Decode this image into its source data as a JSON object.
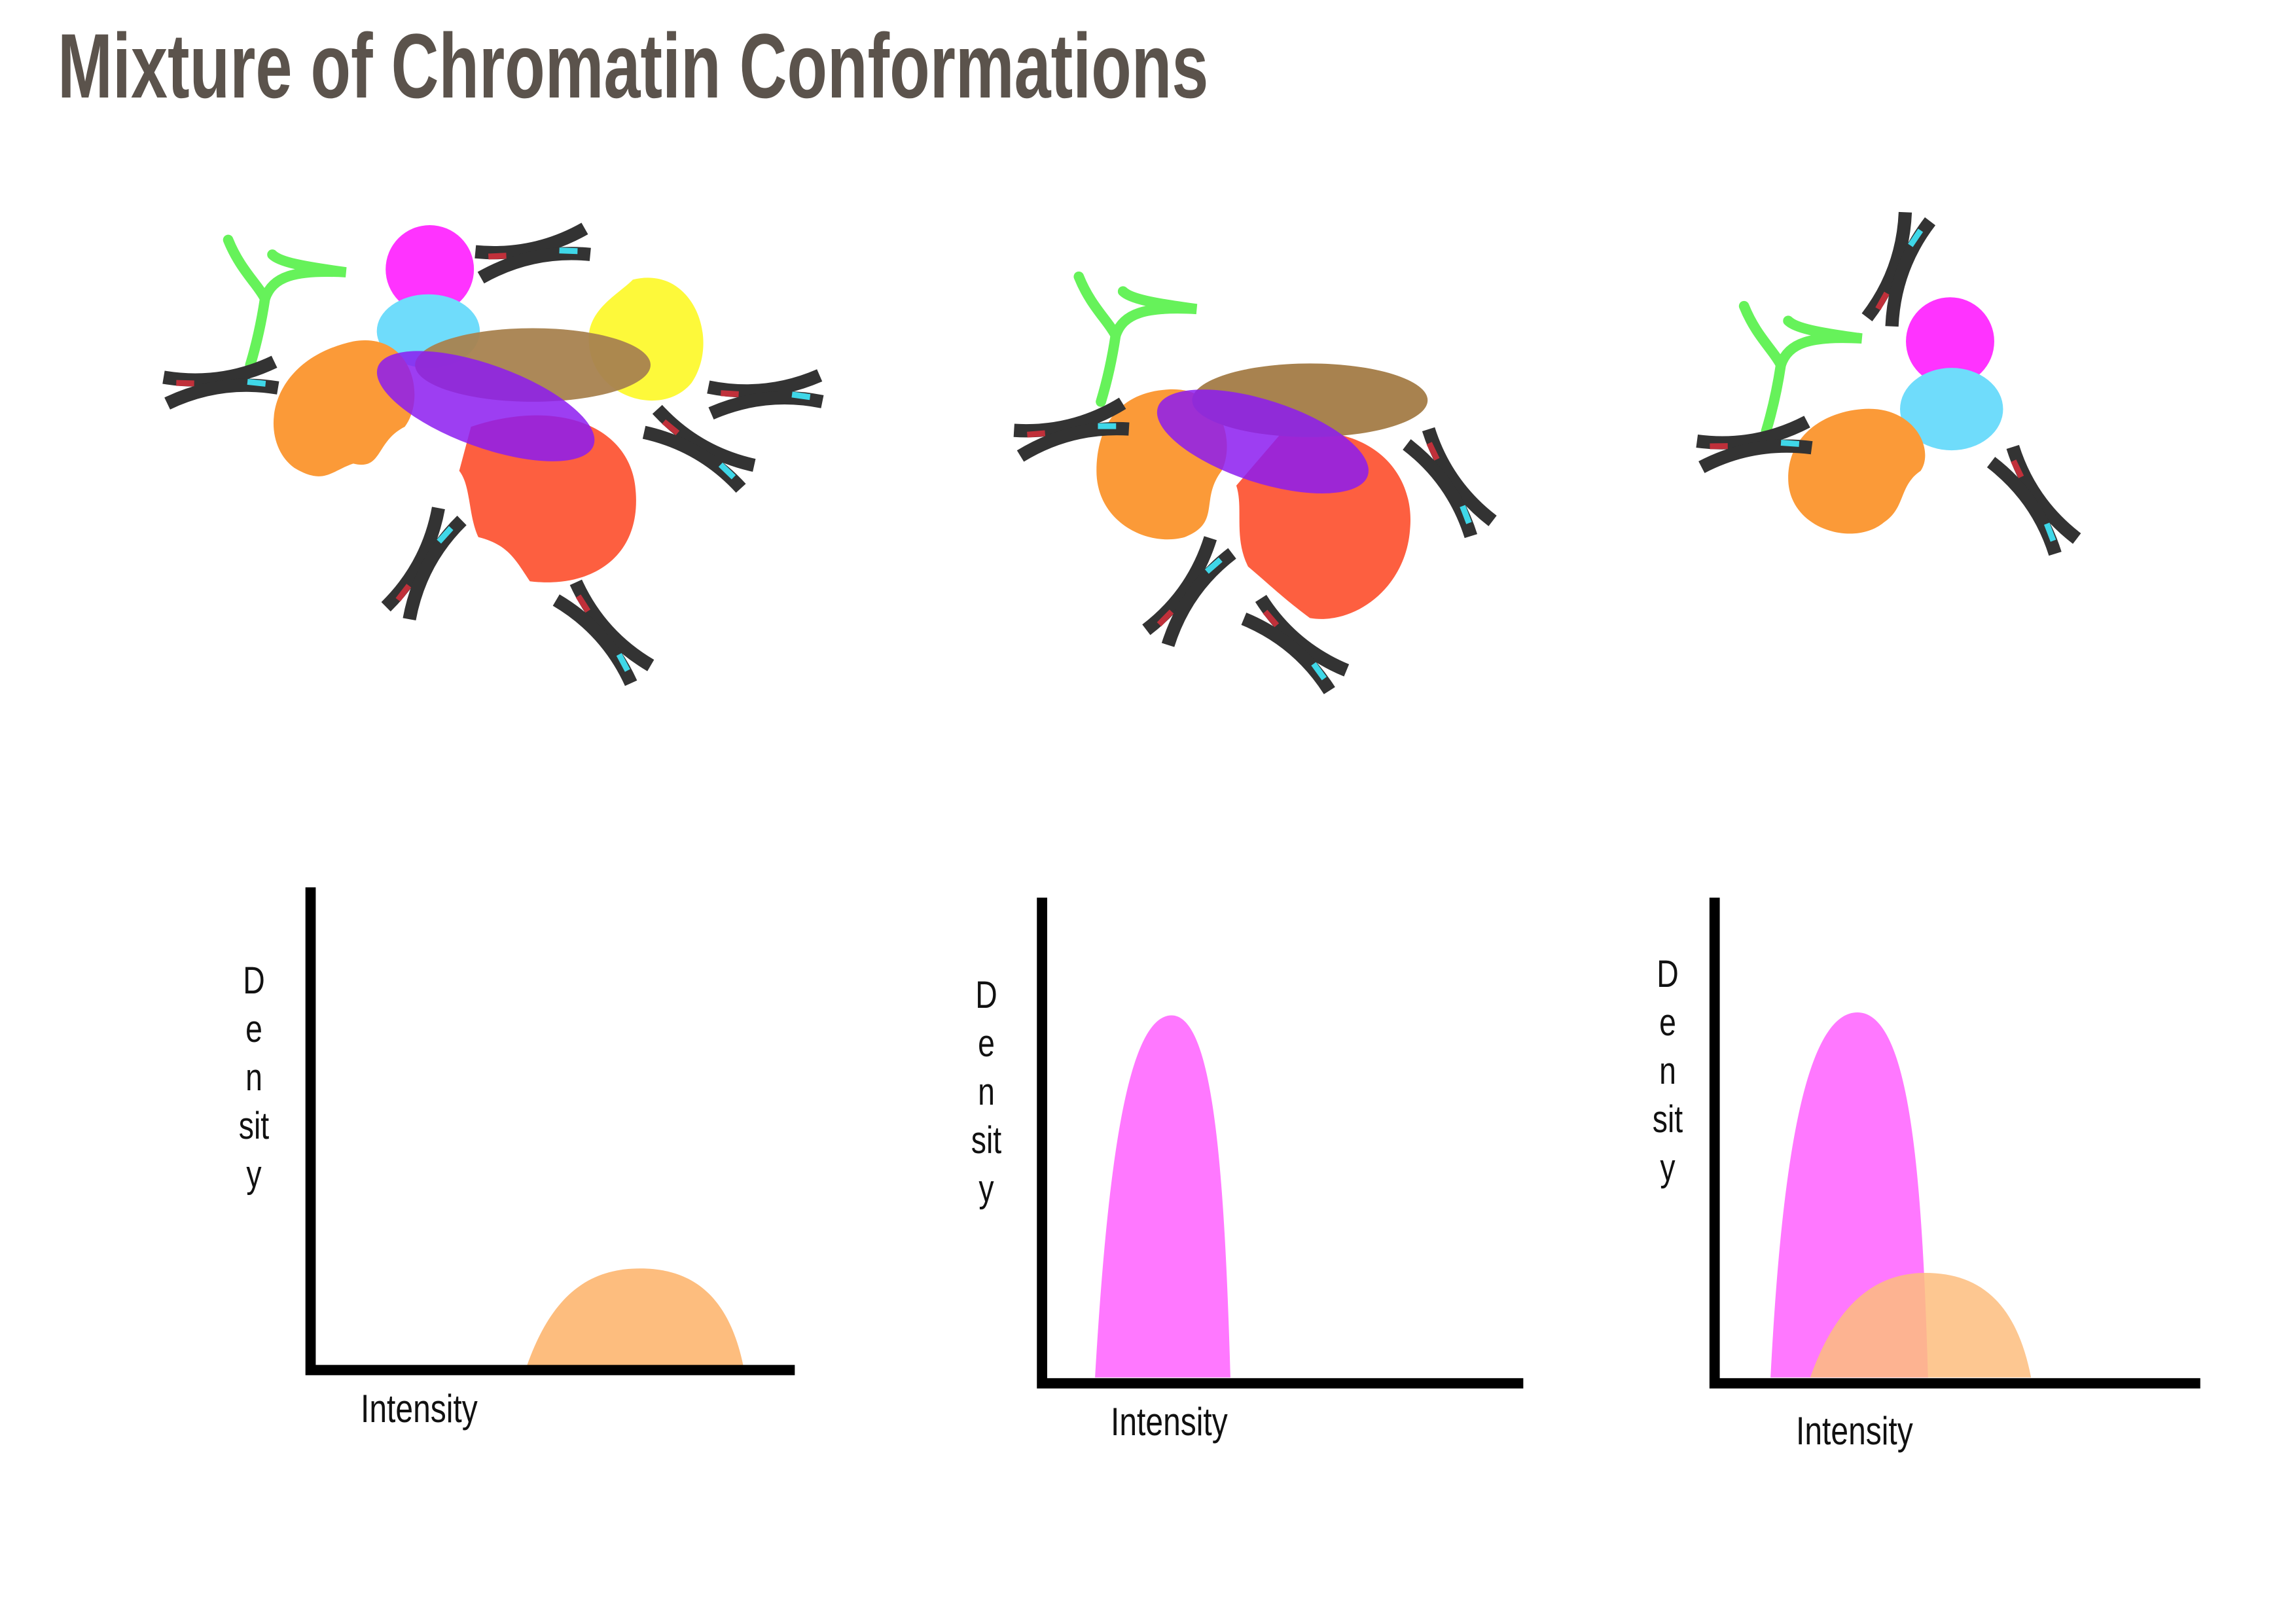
{
  "title": "Mixture of Chromatin Conformations",
  "panels": [
    {
      "y_label": "Density",
      "x_label": "Intensity"
    },
    {
      "y_label": "Density",
      "x_label": "Intensity"
    },
    {
      "y_label": "Density",
      "x_label": "Intensity"
    }
  ]
}
